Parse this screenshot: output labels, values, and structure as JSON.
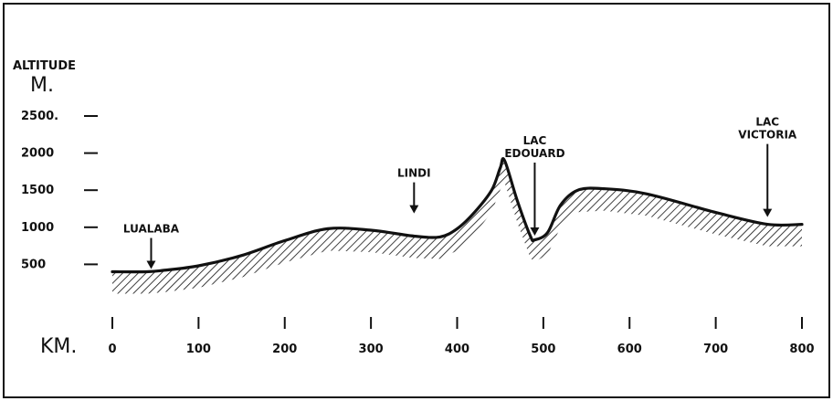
{
  "chart_data": {
    "type": "area",
    "ylabel_line1": "ALTITUDE",
    "ylabel_line2": "M.",
    "xlabel": "KM.",
    "x_range": [
      0,
      800
    ],
    "y_range": [
      0,
      2500
    ],
    "y_ticks": [
      {
        "value": 500,
        "label": "500"
      },
      {
        "value": 1000,
        "label": "1000"
      },
      {
        "value": 1500,
        "label": "1500"
      },
      {
        "value": 2000,
        "label": "2000"
      },
      {
        "value": 2500,
        "label": "2500."
      }
    ],
    "x_ticks": [
      {
        "value": 0,
        "label": "0"
      },
      {
        "value": 100,
        "label": "100"
      },
      {
        "value": 200,
        "label": "200"
      },
      {
        "value": 300,
        "label": "300"
      },
      {
        "value": 400,
        "label": "400"
      },
      {
        "value": 500,
        "label": "500"
      },
      {
        "value": 600,
        "label": "600"
      },
      {
        "value": 700,
        "label": "700"
      },
      {
        "value": 800,
        "label": "800"
      }
    ],
    "profile": {
      "x": [
        0,
        40,
        60,
        100,
        150,
        200,
        250,
        300,
        350,
        380,
        400,
        420,
        440,
        450,
        455,
        470,
        485,
        490,
        505,
        520,
        540,
        570,
        620,
        700,
        760,
        800
      ],
      "y": [
        400,
        400,
        420,
        480,
        620,
        820,
        980,
        960,
        880,
        870,
        980,
        1200,
        1500,
        1800,
        1900,
        1350,
        880,
        830,
        930,
        1300,
        1500,
        1520,
        1450,
        1200,
        1040,
        1040
      ]
    },
    "annotations": [
      {
        "x": 45,
        "y": 400,
        "label_lines": [
          "LUALABA"
        ]
      },
      {
        "x": 350,
        "y": 1150,
        "label_lines": [
          "LINDI"
        ]
      },
      {
        "x": 490,
        "y": 850,
        "label_lines": [
          "LAC",
          "EDOUARD"
        ]
      },
      {
        "x": 760,
        "y": 1100,
        "label_lines": [
          "LAC",
          "VICTORIA"
        ]
      }
    ],
    "grid": false,
    "legend": "none"
  }
}
